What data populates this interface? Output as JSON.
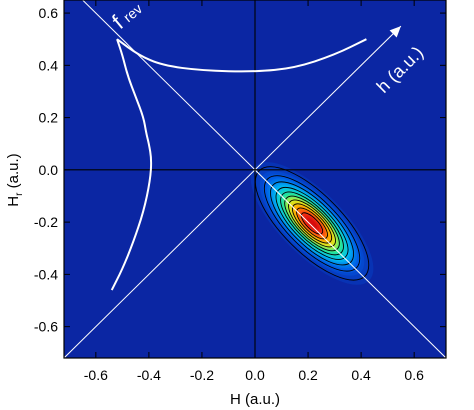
{
  "chart_data": {
    "type": "heatmap",
    "title": "",
    "xlabel": "H (a.u.)",
    "ylabel_main": "H",
    "ylabel_sub": "r",
    "ylabel_unit": " (a.u.)",
    "xlim": [
      -0.72,
      0.72
    ],
    "ylim": [
      -0.72,
      0.65
    ],
    "x_ticks": [
      -0.6,
      -0.4,
      -0.2,
      0.0,
      0.2,
      0.4,
      0.6
    ],
    "x_tick_labels": [
      "-0.6",
      "-0.4",
      "-0.2",
      "0.0",
      "0.2",
      "0.4",
      "0.6"
    ],
    "y_ticks": [
      0.6,
      0.4,
      0.2,
      0.0,
      -0.2,
      -0.4,
      -0.6
    ],
    "y_tick_labels": [
      "0.6",
      "0.4",
      "0.2",
      "0.0",
      "-0.2",
      "-0.4",
      "-0.6"
    ],
    "background_color": "#0b26a3",
    "distribution": {
      "center": [
        0.215,
        -0.205
      ],
      "major_sigma": 0.115,
      "minor_sigma": 0.045,
      "orientation_deg": -45,
      "contour_levels": [
        0.05,
        0.12,
        0.2,
        0.3,
        0.4,
        0.5,
        0.6,
        0.7,
        0.8,
        0.9
      ]
    },
    "reference_lines": [
      {
        "name": "h-axis",
        "from": [
          -0.72,
          -0.72
        ],
        "to": [
          0.55,
          0.55
        ]
      },
      {
        "name": "h_r-axis",
        "from": [
          -0.7,
          0.7
        ],
        "to": [
          0.72,
          -0.72
        ]
      },
      {
        "name": "H-zero",
        "from": [
          0.0,
          -0.72
        ],
        "to": [
          0.0,
          0.65
        ]
      },
      {
        "name": "Hr-zero",
        "from": [
          -0.72,
          0.0
        ],
        "to": [
          0.72,
          0.0
        ]
      }
    ],
    "annotations": {
      "f_rev_main": "f",
      "f_rev_sub": "rev",
      "h_axis_label": "h (a.u.)"
    },
    "curves": {
      "upper": [
        [
          -0.52,
          0.5
        ],
        [
          -0.44,
          0.44
        ],
        [
          -0.35,
          0.4
        ],
        [
          -0.2,
          0.38
        ],
        [
          0.0,
          0.375
        ],
        [
          0.15,
          0.39
        ],
        [
          0.3,
          0.44
        ],
        [
          0.42,
          0.5
        ]
      ],
      "left": [
        [
          -0.52,
          0.5
        ],
        [
          -0.5,
          0.44
        ],
        [
          -0.48,
          0.36
        ],
        [
          -0.45,
          0.28
        ],
        [
          -0.42,
          0.2
        ],
        [
          -0.41,
          0.14
        ],
        [
          -0.4,
          0.1
        ],
        [
          -0.39,
          0.04
        ],
        [
          -0.395,
          -0.04
        ],
        [
          -0.42,
          -0.16
        ],
        [
          -0.46,
          -0.28
        ],
        [
          -0.5,
          -0.38
        ],
        [
          -0.54,
          -0.46
        ]
      ]
    }
  }
}
